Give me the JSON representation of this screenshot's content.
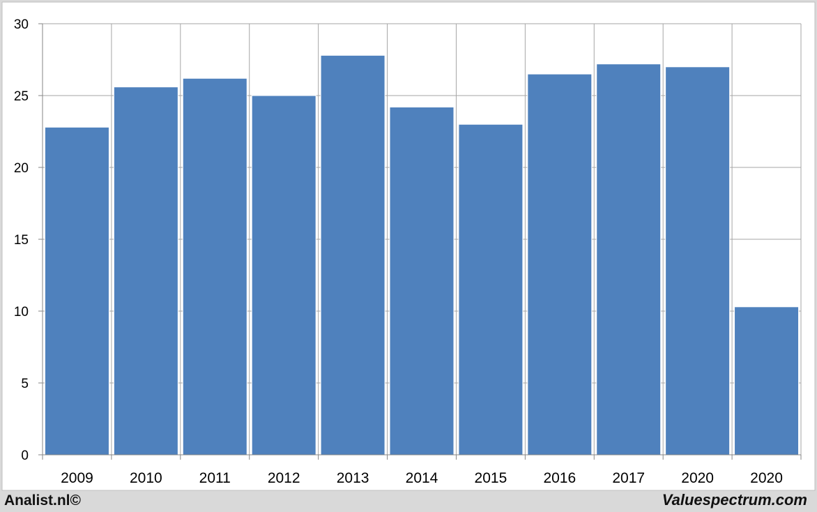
{
  "chart_data": {
    "type": "bar",
    "categories": [
      "2009",
      "2010",
      "2011",
      "2012",
      "2013",
      "2014",
      "2015",
      "2016",
      "2017",
      "2020",
      "2020"
    ],
    "values": [
      22.8,
      25.6,
      26.2,
      25.0,
      27.8,
      24.2,
      23.0,
      26.5,
      27.2,
      27.0,
      10.3
    ],
    "title": "",
    "xlabel": "",
    "ylabel": "",
    "ylim": [
      0,
      30
    ],
    "yticks": [
      0,
      5,
      10,
      15,
      20,
      25,
      30
    ],
    "grid": true,
    "colors": {
      "bar": "#4f81bd",
      "plot_bg": "#ffffff",
      "grid": "#a6a6a6",
      "page_bg": "#d9d9d9"
    }
  },
  "footer": {
    "left": "Analist.nl©",
    "right": "Valuespectrum.com"
  }
}
